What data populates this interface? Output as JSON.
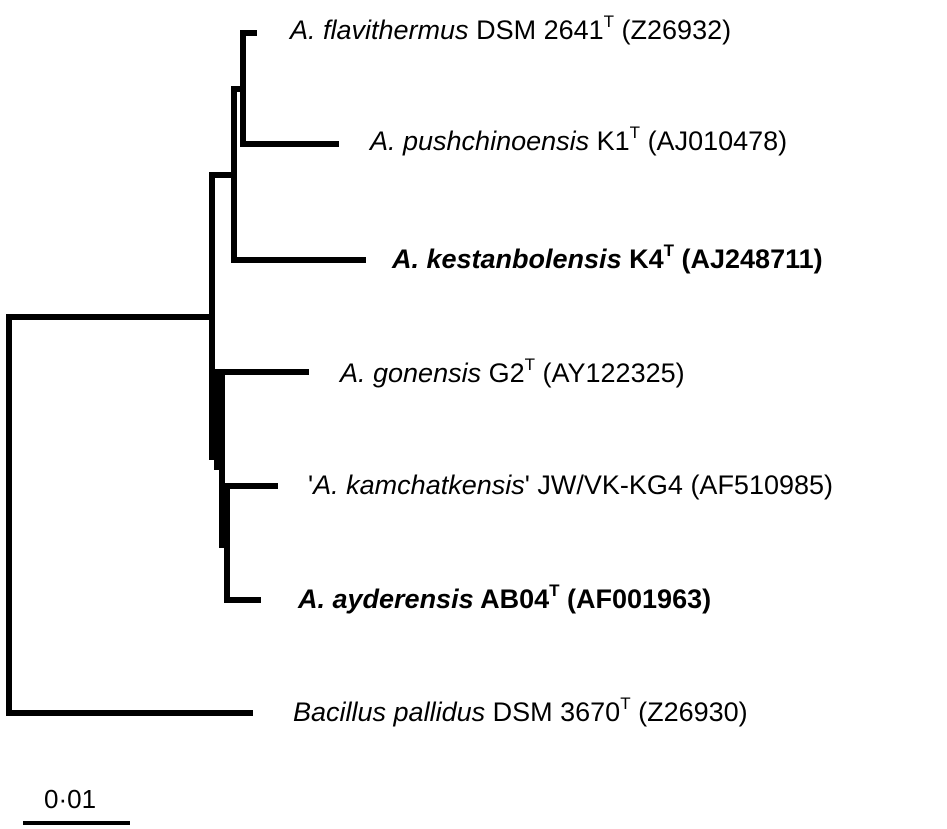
{
  "taxa": [
    {
      "id": "flavithermus",
      "italic": "A. flavithermus",
      "strain": " DSM 2641",
      "sup": "T",
      "accession": " (Z26932)",
      "bold": false
    },
    {
      "id": "pushchinoensis",
      "italic": "A. pushchinoensis",
      "strain": " K1",
      "sup": "T",
      "accession": " (AJ010478)",
      "bold": false
    },
    {
      "id": "kestanbolensis",
      "italic": "A. kestanbolensis",
      "strain": " K4",
      "sup": "T",
      "accession": " (AJ248711)",
      "bold": true
    },
    {
      "id": "gonensis",
      "italic": "A. gonensis",
      "strain": " G2",
      "sup": "T",
      "accession": " (AY122325)",
      "bold": false
    },
    {
      "id": "kamchatkensis",
      "prefix": "'",
      "italic": "A. kamchatkensis",
      "suffix": "'",
      "strain": " JW/VK-KG4",
      "sup": "",
      "accession": " (AF510985)",
      "bold": false
    },
    {
      "id": "ayderensis",
      "italic": "A. ayderensis",
      "strain": " AB04",
      "sup": "T",
      "accession": " (AF001963)",
      "bold": true
    },
    {
      "id": "pallidus",
      "italic": "Bacillus pallidus",
      "strain": " DSM 3670",
      "sup": "T",
      "accession": "  (Z26930)",
      "bold": false
    }
  ],
  "scale_bar": {
    "label": "0·01",
    "value": 0.01
  },
  "colors": {
    "line": "#000000",
    "text": "#000000",
    "background": "#ffffff"
  }
}
